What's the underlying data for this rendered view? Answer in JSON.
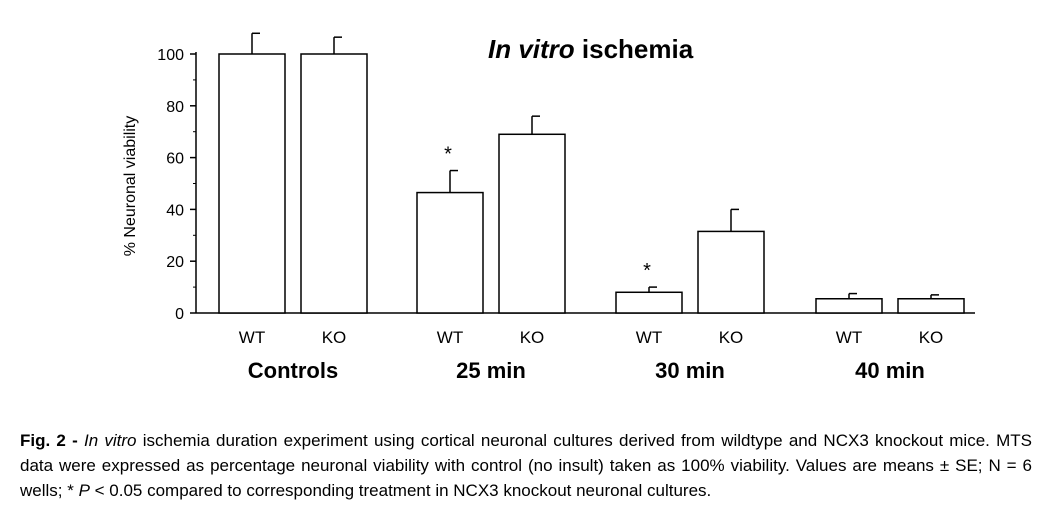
{
  "chart_data": {
    "type": "bar",
    "title_italic": "In vitro",
    "title_rest": " ischemia",
    "ylabel": "% Neuronal viability",
    "ylim": [
      0,
      100
    ],
    "yticks": [
      "0",
      "20",
      "40",
      "60",
      "80",
      "100"
    ],
    "groups": [
      {
        "label": "Controls",
        "bars": [
          {
            "label": "WT",
            "value": 100,
            "error": 8,
            "star": false
          },
          {
            "label": "KO",
            "value": 100,
            "error": 6.5,
            "star": false
          }
        ]
      },
      {
        "label": "25 min",
        "bars": [
          {
            "label": "WT",
            "value": 46.5,
            "error": 8.5,
            "star": true
          },
          {
            "label": "KO",
            "value": 69,
            "error": 7,
            "star": false
          }
        ]
      },
      {
        "label": "30 min",
        "bars": [
          {
            "label": "WT",
            "value": 8,
            "error": 2,
            "star": true
          },
          {
            "label": "KO",
            "value": 31.5,
            "error": 8.5,
            "star": false
          }
        ]
      },
      {
        "label": "40 min",
        "bars": [
          {
            "label": "WT",
            "value": 5.5,
            "error": 2,
            "star": false
          },
          {
            "label": "KO",
            "value": 5.5,
            "error": 1.5,
            "star": false
          }
        ]
      }
    ],
    "star_symbol": "*"
  },
  "caption": {
    "fig_label": "Fig. 2 -",
    "italic_invitro": "In vitro",
    "part1": " ischemia duration experiment using cortical neuronal cultures derived from wildtype and NCX3 knockout mice.  MTS data were expressed as percentage neuronal viability with control (no insult) taken as 100% viability.  Values are means ± SE; N = 6 wells; * ",
    "italic_p": "P",
    "part2": " < 0.05 compared to corresponding treatment in NCX3 knockout neuronal cultures."
  }
}
